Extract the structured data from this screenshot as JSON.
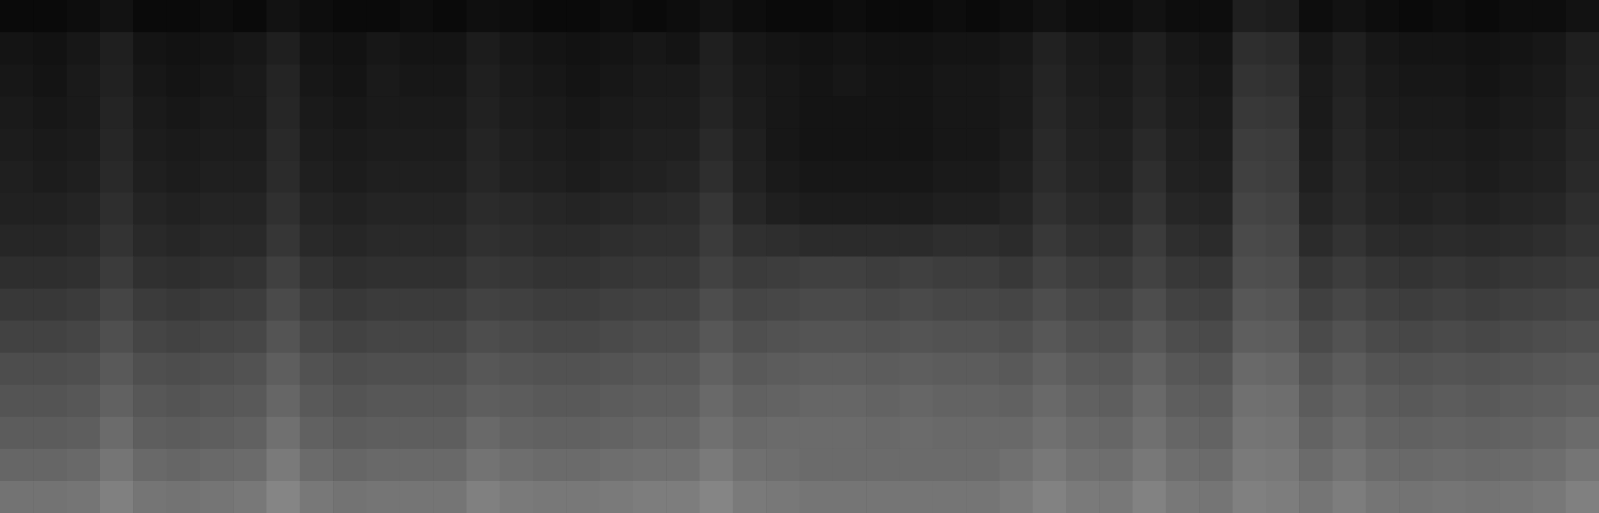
{
  "chart_data": {
    "type": "heatmap",
    "tick_labels": false,
    "color": "#ffffff",
    "zlim": [
      0,
      1
    ],
    "cells": [
      [
        0.04,
        0.04,
        0.05,
        0.07,
        0.04,
        0.04,
        0.05,
        0.04,
        0.07,
        0.05,
        0.04,
        0.04,
        0.05,
        0.04,
        0.06,
        0.05,
        0.04,
        0.04,
        0.05,
        0.04,
        0.05,
        0.07,
        0.05,
        0.04,
        0.04,
        0.05,
        0.04,
        0.04,
        0.05,
        0.04,
        0.05,
        0.07,
        0.05,
        0.05,
        0.07,
        0.05,
        0.05,
        0.12,
        0.11,
        0.05,
        0.07,
        0.05,
        0.04,
        0.05,
        0.04,
        0.05,
        0.05,
        0.07
      ],
      [
        0.08,
        0.07,
        0.09,
        0.12,
        0.08,
        0.07,
        0.08,
        0.09,
        0.12,
        0.08,
        0.07,
        0.09,
        0.08,
        0.08,
        0.11,
        0.09,
        0.08,
        0.07,
        0.08,
        0.09,
        0.08,
        0.12,
        0.09,
        0.08,
        0.07,
        0.08,
        0.07,
        0.07,
        0.08,
        0.08,
        0.09,
        0.13,
        0.1,
        0.09,
        0.12,
        0.09,
        0.08,
        0.18,
        0.17,
        0.09,
        0.12,
        0.09,
        0.08,
        0.08,
        0.07,
        0.08,
        0.09,
        0.12
      ],
      [
        0.09,
        0.08,
        0.1,
        0.13,
        0.09,
        0.08,
        0.09,
        0.1,
        0.14,
        0.09,
        0.08,
        0.1,
        0.09,
        0.09,
        0.12,
        0.1,
        0.09,
        0.08,
        0.09,
        0.1,
        0.1,
        0.13,
        0.1,
        0.09,
        0.08,
        0.09,
        0.08,
        0.08,
        0.09,
        0.09,
        0.1,
        0.14,
        0.11,
        0.1,
        0.13,
        0.1,
        0.09,
        0.2,
        0.19,
        0.1,
        0.13,
        0.1,
        0.09,
        0.09,
        0.08,
        0.09,
        0.1,
        0.13
      ],
      [
        0.1,
        0.09,
        0.1,
        0.14,
        0.1,
        0.09,
        0.1,
        0.1,
        0.15,
        0.1,
        0.09,
        0.1,
        0.1,
        0.1,
        0.13,
        0.11,
        0.1,
        0.09,
        0.1,
        0.11,
        0.11,
        0.14,
        0.11,
        0.09,
        0.08,
        0.08,
        0.08,
        0.08,
        0.09,
        0.09,
        0.1,
        0.15,
        0.12,
        0.11,
        0.14,
        0.11,
        0.1,
        0.22,
        0.21,
        0.1,
        0.14,
        0.11,
        0.1,
        0.1,
        0.09,
        0.1,
        0.11,
        0.14
      ],
      [
        0.11,
        0.1,
        0.11,
        0.15,
        0.11,
        0.1,
        0.11,
        0.11,
        0.16,
        0.11,
        0.1,
        0.11,
        0.11,
        0.11,
        0.14,
        0.12,
        0.11,
        0.1,
        0.11,
        0.12,
        0.12,
        0.16,
        0.12,
        0.09,
        0.08,
        0.08,
        0.08,
        0.08,
        0.09,
        0.09,
        0.11,
        0.16,
        0.13,
        0.12,
        0.16,
        0.12,
        0.11,
        0.24,
        0.23,
        0.11,
        0.15,
        0.12,
        0.11,
        0.11,
        0.1,
        0.11,
        0.12,
        0.15
      ],
      [
        0.12,
        0.11,
        0.12,
        0.16,
        0.12,
        0.11,
        0.12,
        0.12,
        0.17,
        0.12,
        0.11,
        0.12,
        0.12,
        0.12,
        0.15,
        0.13,
        0.12,
        0.11,
        0.12,
        0.13,
        0.14,
        0.18,
        0.13,
        0.1,
        0.09,
        0.09,
        0.09,
        0.09,
        0.1,
        0.1,
        0.12,
        0.17,
        0.14,
        0.13,
        0.18,
        0.13,
        0.12,
        0.25,
        0.24,
        0.12,
        0.16,
        0.13,
        0.12,
        0.12,
        0.11,
        0.12,
        0.13,
        0.16
      ],
      [
        0.13,
        0.13,
        0.14,
        0.18,
        0.14,
        0.13,
        0.14,
        0.14,
        0.19,
        0.14,
        0.13,
        0.14,
        0.14,
        0.14,
        0.17,
        0.16,
        0.15,
        0.14,
        0.15,
        0.16,
        0.17,
        0.21,
        0.15,
        0.12,
        0.11,
        0.11,
        0.11,
        0.11,
        0.12,
        0.12,
        0.14,
        0.19,
        0.16,
        0.15,
        0.2,
        0.15,
        0.14,
        0.27,
        0.26,
        0.14,
        0.17,
        0.14,
        0.13,
        0.14,
        0.13,
        0.14,
        0.15,
        0.18
      ],
      [
        0.15,
        0.15,
        0.16,
        0.2,
        0.16,
        0.15,
        0.16,
        0.16,
        0.21,
        0.16,
        0.15,
        0.16,
        0.16,
        0.16,
        0.19,
        0.18,
        0.17,
        0.17,
        0.18,
        0.19,
        0.19,
        0.23,
        0.19,
        0.18,
        0.17,
        0.17,
        0.17,
        0.17,
        0.18,
        0.18,
        0.17,
        0.22,
        0.19,
        0.18,
        0.23,
        0.18,
        0.17,
        0.29,
        0.28,
        0.17,
        0.2,
        0.17,
        0.16,
        0.17,
        0.16,
        0.17,
        0.18,
        0.2
      ],
      [
        0.18,
        0.18,
        0.19,
        0.23,
        0.19,
        0.18,
        0.19,
        0.2,
        0.25,
        0.2,
        0.18,
        0.19,
        0.19,
        0.19,
        0.22,
        0.21,
        0.2,
        0.2,
        0.21,
        0.22,
        0.22,
        0.26,
        0.23,
        0.24,
        0.25,
        0.25,
        0.24,
        0.25,
        0.24,
        0.24,
        0.22,
        0.26,
        0.23,
        0.22,
        0.26,
        0.22,
        0.21,
        0.31,
        0.3,
        0.21,
        0.24,
        0.21,
        0.2,
        0.21,
        0.2,
        0.21,
        0.22,
        0.23
      ],
      [
        0.22,
        0.22,
        0.23,
        0.27,
        0.23,
        0.22,
        0.23,
        0.24,
        0.29,
        0.24,
        0.22,
        0.23,
        0.23,
        0.23,
        0.26,
        0.25,
        0.24,
        0.24,
        0.25,
        0.26,
        0.26,
        0.3,
        0.27,
        0.28,
        0.29,
        0.29,
        0.28,
        0.29,
        0.28,
        0.28,
        0.27,
        0.3,
        0.27,
        0.26,
        0.3,
        0.26,
        0.25,
        0.34,
        0.33,
        0.25,
        0.28,
        0.25,
        0.24,
        0.25,
        0.24,
        0.25,
        0.26,
        0.27
      ],
      [
        0.26,
        0.26,
        0.27,
        0.31,
        0.27,
        0.26,
        0.27,
        0.28,
        0.33,
        0.28,
        0.26,
        0.27,
        0.27,
        0.27,
        0.3,
        0.29,
        0.28,
        0.28,
        0.29,
        0.3,
        0.3,
        0.34,
        0.31,
        0.32,
        0.33,
        0.33,
        0.32,
        0.33,
        0.32,
        0.32,
        0.31,
        0.34,
        0.31,
        0.3,
        0.34,
        0.3,
        0.29,
        0.37,
        0.36,
        0.29,
        0.32,
        0.29,
        0.28,
        0.29,
        0.28,
        0.29,
        0.3,
        0.31
      ],
      [
        0.3,
        0.3,
        0.31,
        0.35,
        0.31,
        0.3,
        0.31,
        0.32,
        0.37,
        0.32,
        0.3,
        0.31,
        0.31,
        0.31,
        0.34,
        0.33,
        0.32,
        0.32,
        0.33,
        0.34,
        0.34,
        0.38,
        0.35,
        0.36,
        0.37,
        0.37,
        0.36,
        0.37,
        0.36,
        0.36,
        0.35,
        0.38,
        0.35,
        0.34,
        0.38,
        0.34,
        0.33,
        0.41,
        0.4,
        0.33,
        0.36,
        0.33,
        0.32,
        0.33,
        0.32,
        0.33,
        0.34,
        0.35
      ],
      [
        0.33,
        0.33,
        0.34,
        0.38,
        0.34,
        0.33,
        0.34,
        0.35,
        0.4,
        0.35,
        0.33,
        0.34,
        0.34,
        0.34,
        0.37,
        0.36,
        0.35,
        0.35,
        0.36,
        0.37,
        0.37,
        0.41,
        0.38,
        0.39,
        0.4,
        0.4,
        0.39,
        0.4,
        0.39,
        0.39,
        0.38,
        0.41,
        0.38,
        0.37,
        0.41,
        0.37,
        0.36,
        0.44,
        0.43,
        0.36,
        0.39,
        0.36,
        0.35,
        0.36,
        0.35,
        0.36,
        0.37,
        0.38
      ],
      [
        0.36,
        0.36,
        0.37,
        0.42,
        0.37,
        0.36,
        0.37,
        0.38,
        0.44,
        0.38,
        0.36,
        0.37,
        0.37,
        0.37,
        0.41,
        0.39,
        0.38,
        0.38,
        0.39,
        0.4,
        0.4,
        0.44,
        0.41,
        0.42,
        0.42,
        0.42,
        0.41,
        0.42,
        0.41,
        0.41,
        0.41,
        0.44,
        0.41,
        0.4,
        0.44,
        0.4,
        0.39,
        0.46,
        0.45,
        0.39,
        0.42,
        0.39,
        0.38,
        0.39,
        0.38,
        0.39,
        0.4,
        0.42
      ],
      [
        0.4,
        0.4,
        0.41,
        0.46,
        0.41,
        0.4,
        0.41,
        0.42,
        0.48,
        0.42,
        0.4,
        0.41,
        0.41,
        0.41,
        0.45,
        0.43,
        0.42,
        0.42,
        0.43,
        0.44,
        0.44,
        0.48,
        0.44,
        0.43,
        0.42,
        0.42,
        0.42,
        0.42,
        0.42,
        0.42,
        0.44,
        0.47,
        0.44,
        0.43,
        0.47,
        0.43,
        0.42,
        0.48,
        0.47,
        0.42,
        0.45,
        0.42,
        0.41,
        0.42,
        0.41,
        0.42,
        0.43,
        0.46
      ],
      [
        0.45,
        0.45,
        0.46,
        0.5,
        0.46,
        0.45,
        0.46,
        0.47,
        0.52,
        0.47,
        0.45,
        0.46,
        0.46,
        0.46,
        0.5,
        0.48,
        0.47,
        0.47,
        0.48,
        0.49,
        0.49,
        0.52,
        0.48,
        0.47,
        0.46,
        0.46,
        0.46,
        0.46,
        0.46,
        0.46,
        0.48,
        0.51,
        0.48,
        0.47,
        0.51,
        0.47,
        0.46,
        0.5,
        0.49,
        0.46,
        0.49,
        0.46,
        0.45,
        0.46,
        0.45,
        0.46,
        0.47,
        0.5
      ]
    ]
  }
}
